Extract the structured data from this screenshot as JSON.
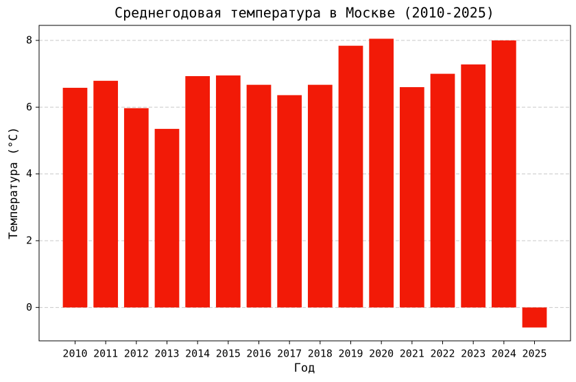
{
  "chart_data": {
    "type": "bar",
    "title": "Среднегодовая температура в Москве (2010-2025)",
    "x_label": "Год",
    "y_label": "Температура (°C)",
    "categories": [
      "2010",
      "2011",
      "2012",
      "2013",
      "2014",
      "2015",
      "2016",
      "2017",
      "2018",
      "2019",
      "2020",
      "2021",
      "2022",
      "2023",
      "2024",
      "2025"
    ],
    "values": [
      6.58,
      6.79,
      5.97,
      5.35,
      6.93,
      6.95,
      6.67,
      6.36,
      6.67,
      7.84,
      8.05,
      6.6,
      7.0,
      7.28,
      8.0,
      -0.6
    ],
    "color": "#f21a07",
    "ylim": [
      -1.0,
      8.45
    ],
    "yticks": [
      0,
      2,
      4,
      6,
      8
    ],
    "grid": true
  }
}
